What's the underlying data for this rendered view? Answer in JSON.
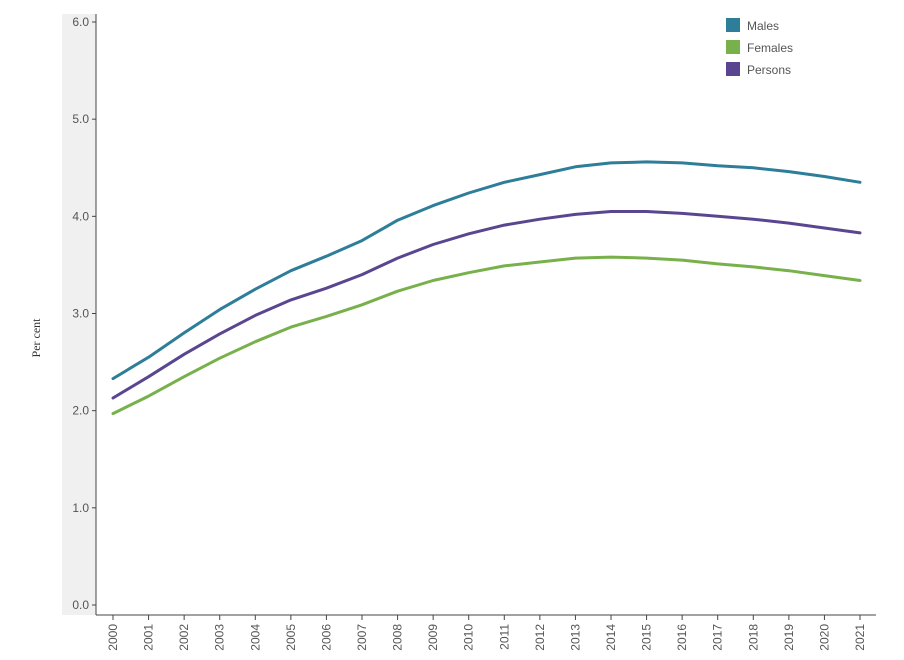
{
  "chart_data": {
    "type": "line",
    "title": "",
    "xlabel": "",
    "ylabel": "Per cent",
    "ylim": [
      0,
      6
    ],
    "yticks": [
      "0.0",
      "1.0",
      "2.0",
      "3.0",
      "4.0",
      "5.0",
      "6.0"
    ],
    "categories": [
      "2000",
      "2001",
      "2002",
      "2003",
      "2004",
      "2005",
      "2006",
      "2007",
      "2008",
      "2009",
      "2010",
      "2011",
      "2012",
      "2013",
      "2014",
      "2015",
      "2016",
      "2017",
      "2018",
      "2019",
      "2020",
      "2021"
    ],
    "series": [
      {
        "name": "Males",
        "color": "#2e7d99",
        "values": [
          2.33,
          2.55,
          2.8,
          3.04,
          3.25,
          3.44,
          3.59,
          3.75,
          3.96,
          4.11,
          4.24,
          4.35,
          4.43,
          4.51,
          4.55,
          4.56,
          4.55,
          4.52,
          4.5,
          4.46,
          4.41,
          4.35
        ]
      },
      {
        "name": "Females",
        "color": "#78b14b",
        "values": [
          1.97,
          2.15,
          2.35,
          2.54,
          2.71,
          2.86,
          2.97,
          3.09,
          3.23,
          3.34,
          3.42,
          3.49,
          3.53,
          3.57,
          3.58,
          3.57,
          3.55,
          3.51,
          3.48,
          3.44,
          3.39,
          3.34
        ]
      },
      {
        "name": "Persons",
        "color": "#5a4690",
        "values": [
          2.13,
          2.35,
          2.58,
          2.79,
          2.98,
          3.14,
          3.26,
          3.4,
          3.57,
          3.71,
          3.82,
          3.91,
          3.97,
          4.02,
          4.05,
          4.05,
          4.03,
          4.0,
          3.97,
          3.93,
          3.88,
          3.83
        ]
      }
    ],
    "grid": false,
    "legend_position": "top-right"
  }
}
